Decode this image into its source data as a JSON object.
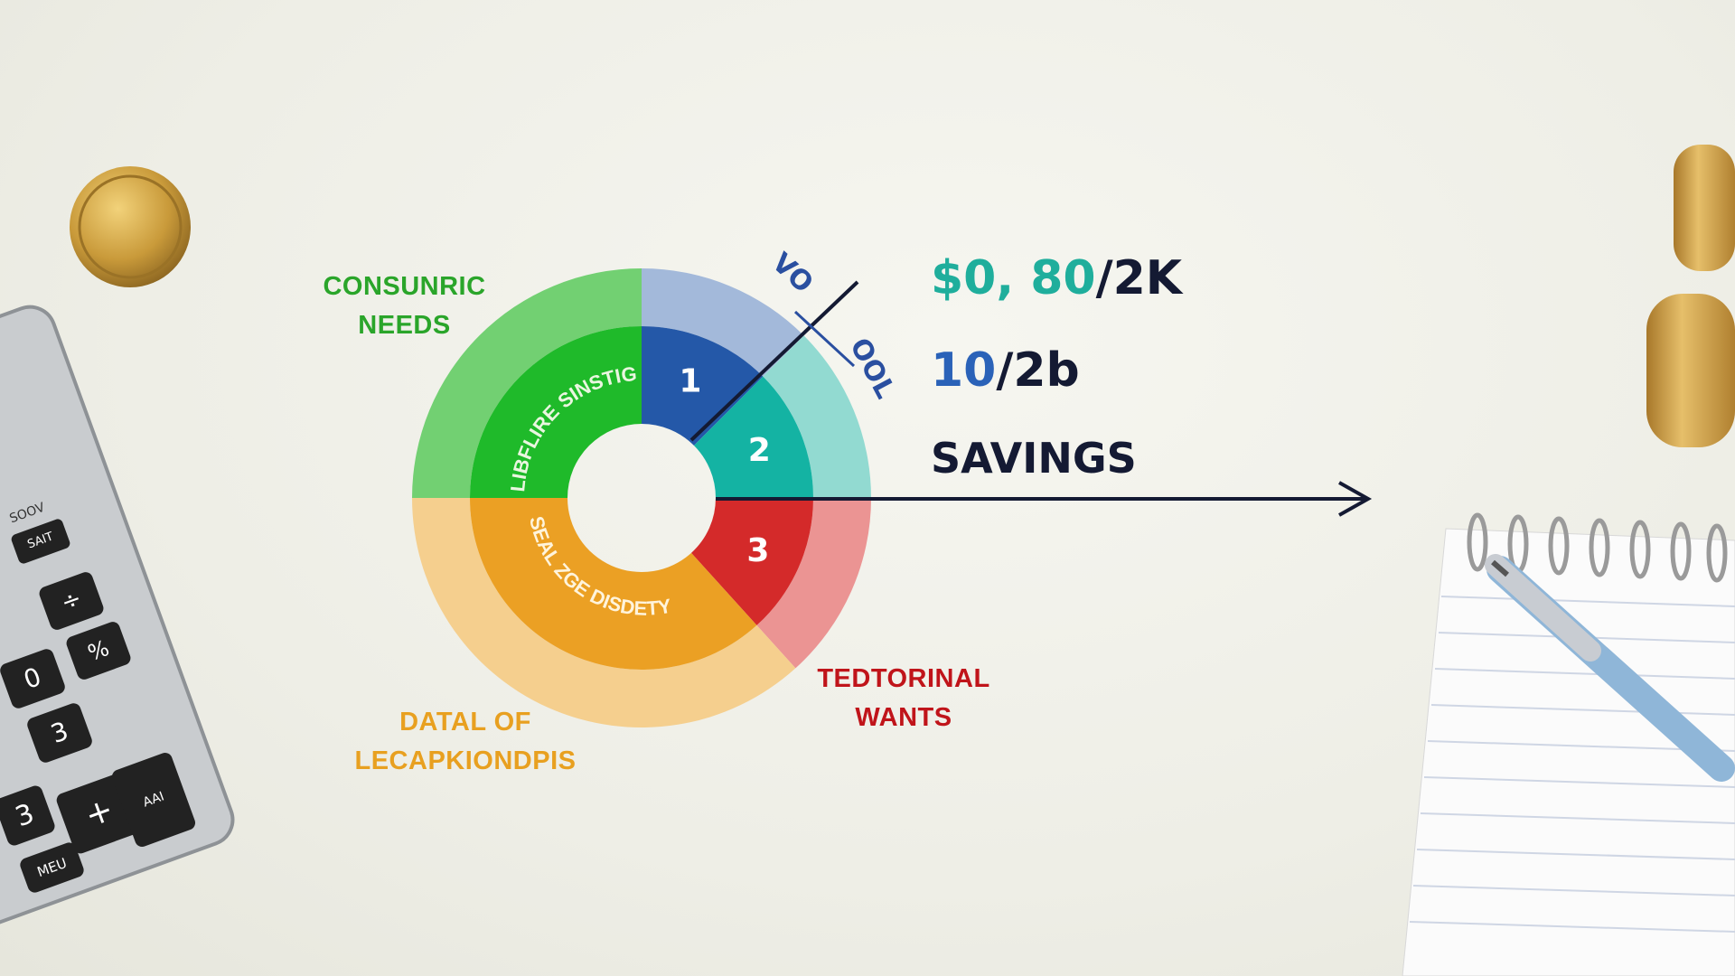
{
  "chart_data": {
    "type": "pie",
    "variant": "donut",
    "segments": [
      {
        "label": "1",
        "value": 12.5,
        "color": "#2458a8",
        "outer_color": "#a3b9da"
      },
      {
        "label": "2",
        "value": 12.5,
        "color": "#14b3a3",
        "outer_color": "#92dad1"
      },
      {
        "label": "3",
        "value": 13.3,
        "color": "#d42a2a",
        "outer_color": "#eb9493"
      },
      {
        "label": "",
        "value": 36.7,
        "color": "#eba024",
        "outer_color": "#f5cf8e",
        "ring_text": "SEAL ZGE DISDETY"
      },
      {
        "label": "",
        "value": 25.0,
        "color": "#1fba2a",
        "outer_color": "#72d072",
        "ring_text": "LIBFLIRE SINSTIG"
      }
    ],
    "annotations": {
      "needs": [
        "CONSUNRIC",
        "NEEDS"
      ],
      "wants": [
        "TEDTORINAL",
        "WANTS"
      ],
      "other": [
        "DATAL OF",
        "LECAPKIONDPIS"
      ],
      "diagonal_label_left": "VO",
      "diagonal_label_right": "OOL"
    },
    "colors": {
      "needs": "#2aa52a",
      "wants": "#c0141a",
      "other": "#e8a020",
      "ink": "#141a33"
    }
  },
  "figures": {
    "value1_accent": "$0, 80",
    "value1_rest": "/2K",
    "value2_accent": "10",
    "value2_rest": "/2b",
    "savings": "SAVINGS",
    "accent1_color": "#1fae9c",
    "accent2_color": "#2a62b8"
  },
  "calculator": {
    "keys": [
      "SOOV",
      "SAIT",
      "÷",
      "%",
      "0",
      "3",
      "+",
      "3",
      "MEU",
      "AAI"
    ]
  }
}
